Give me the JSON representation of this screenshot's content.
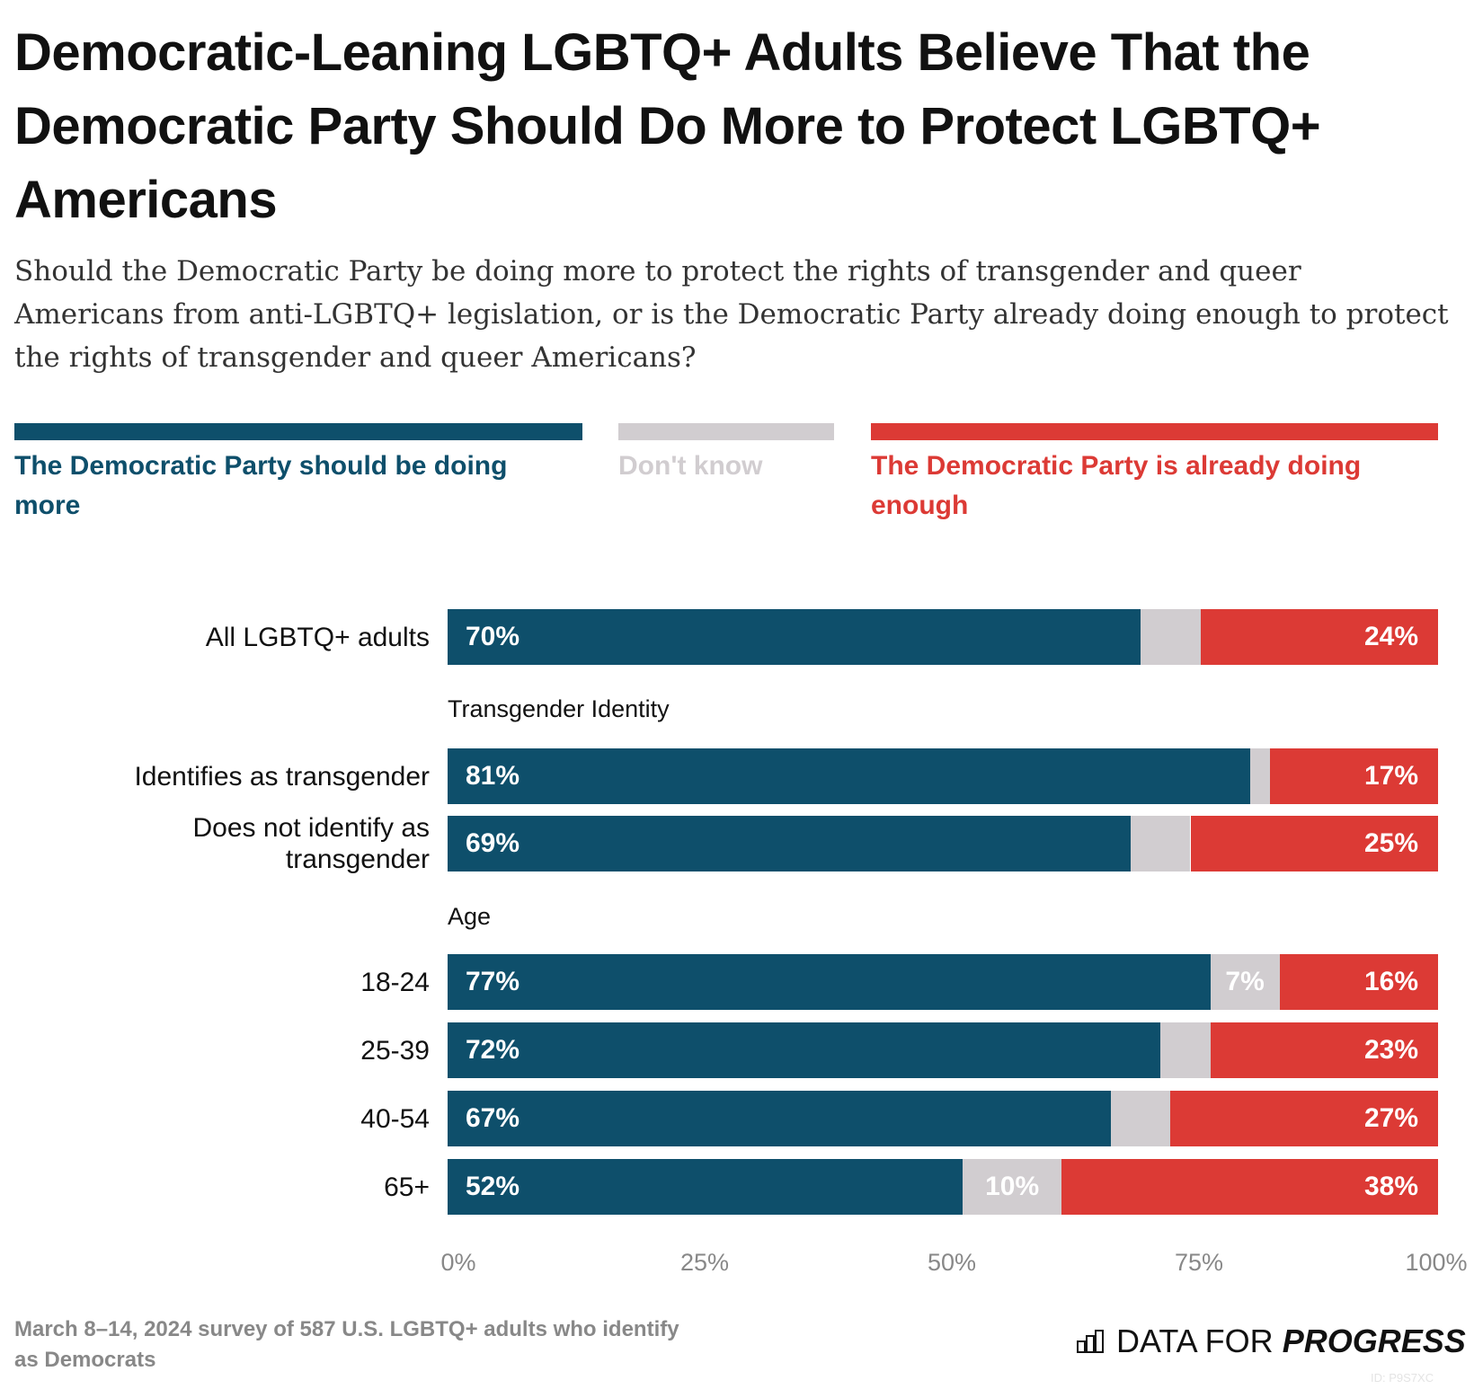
{
  "title": "Democratic-Leaning LGBTQ+ Adults Believe That the Democratic Party Should Do More to Protect LGBTQ+ Americans",
  "subtitle": "Should the Democratic Party be doing more to protect the rights of transgender and queer Americans from anti-LGBTQ+ legislation, or is the Democratic Party already doing enough to protect the rights of transgender and queer Americans?",
  "legend": [
    {
      "label": "The Democratic Party should be doing more",
      "color": "#0e4f6b"
    },
    {
      "label": "Don't know",
      "color": "#d1cdd0"
    },
    {
      "label": "The Democratic Party is already doing enough",
      "color": "#dc3a35"
    }
  ],
  "chart_data": {
    "type": "bar",
    "stacked": true,
    "orientation": "horizontal",
    "xlim": [
      0,
      100
    ],
    "x_ticks": [
      "0%",
      "25%",
      "50%",
      "75%",
      "100%"
    ],
    "groups": [
      {
        "heading": "",
        "categories": [
          "All LGBTQ+ adults"
        ]
      },
      {
        "heading": "Transgender Identity",
        "categories": [
          "Identifies as transgender",
          "Does not identify as transgender"
        ]
      },
      {
        "heading": "Age",
        "categories": [
          "18-24",
          "25-39",
          "40-54",
          "65+"
        ]
      }
    ],
    "categories": [
      "All LGBTQ+ adults",
      "Identifies as transgender",
      "Does not identify as transgender",
      "18-24",
      "25-39",
      "40-54",
      "65+"
    ],
    "series": [
      {
        "name": "The Democratic Party should be doing more",
        "values": [
          70,
          81,
          69,
          77,
          72,
          67,
          52
        ],
        "labels": [
          "70%",
          "81%",
          "69%",
          "77%",
          "72%",
          "67%",
          "52%"
        ]
      },
      {
        "name": "Don't know",
        "values": [
          6,
          2,
          6,
          7,
          5,
          6,
          10
        ],
        "labels": [
          "",
          "",
          "",
          "7%",
          "",
          "",
          "10%"
        ]
      },
      {
        "name": "The Democratic Party is already doing enough",
        "values": [
          24,
          17,
          25,
          16,
          23,
          27,
          38
        ],
        "labels": [
          "24%",
          "17%",
          "25%",
          "16%",
          "23%",
          "27%",
          "38%"
        ]
      }
    ]
  },
  "footnote": "March 8–14, 2024 survey of 587 U.S. LGBTQ+ adults who identify as Democrats",
  "logo": {
    "light": "DATA FOR",
    "bold": "PROGRESS",
    "icon": "bar-chart-icon"
  },
  "chart_id": "ID: P9S7XC"
}
